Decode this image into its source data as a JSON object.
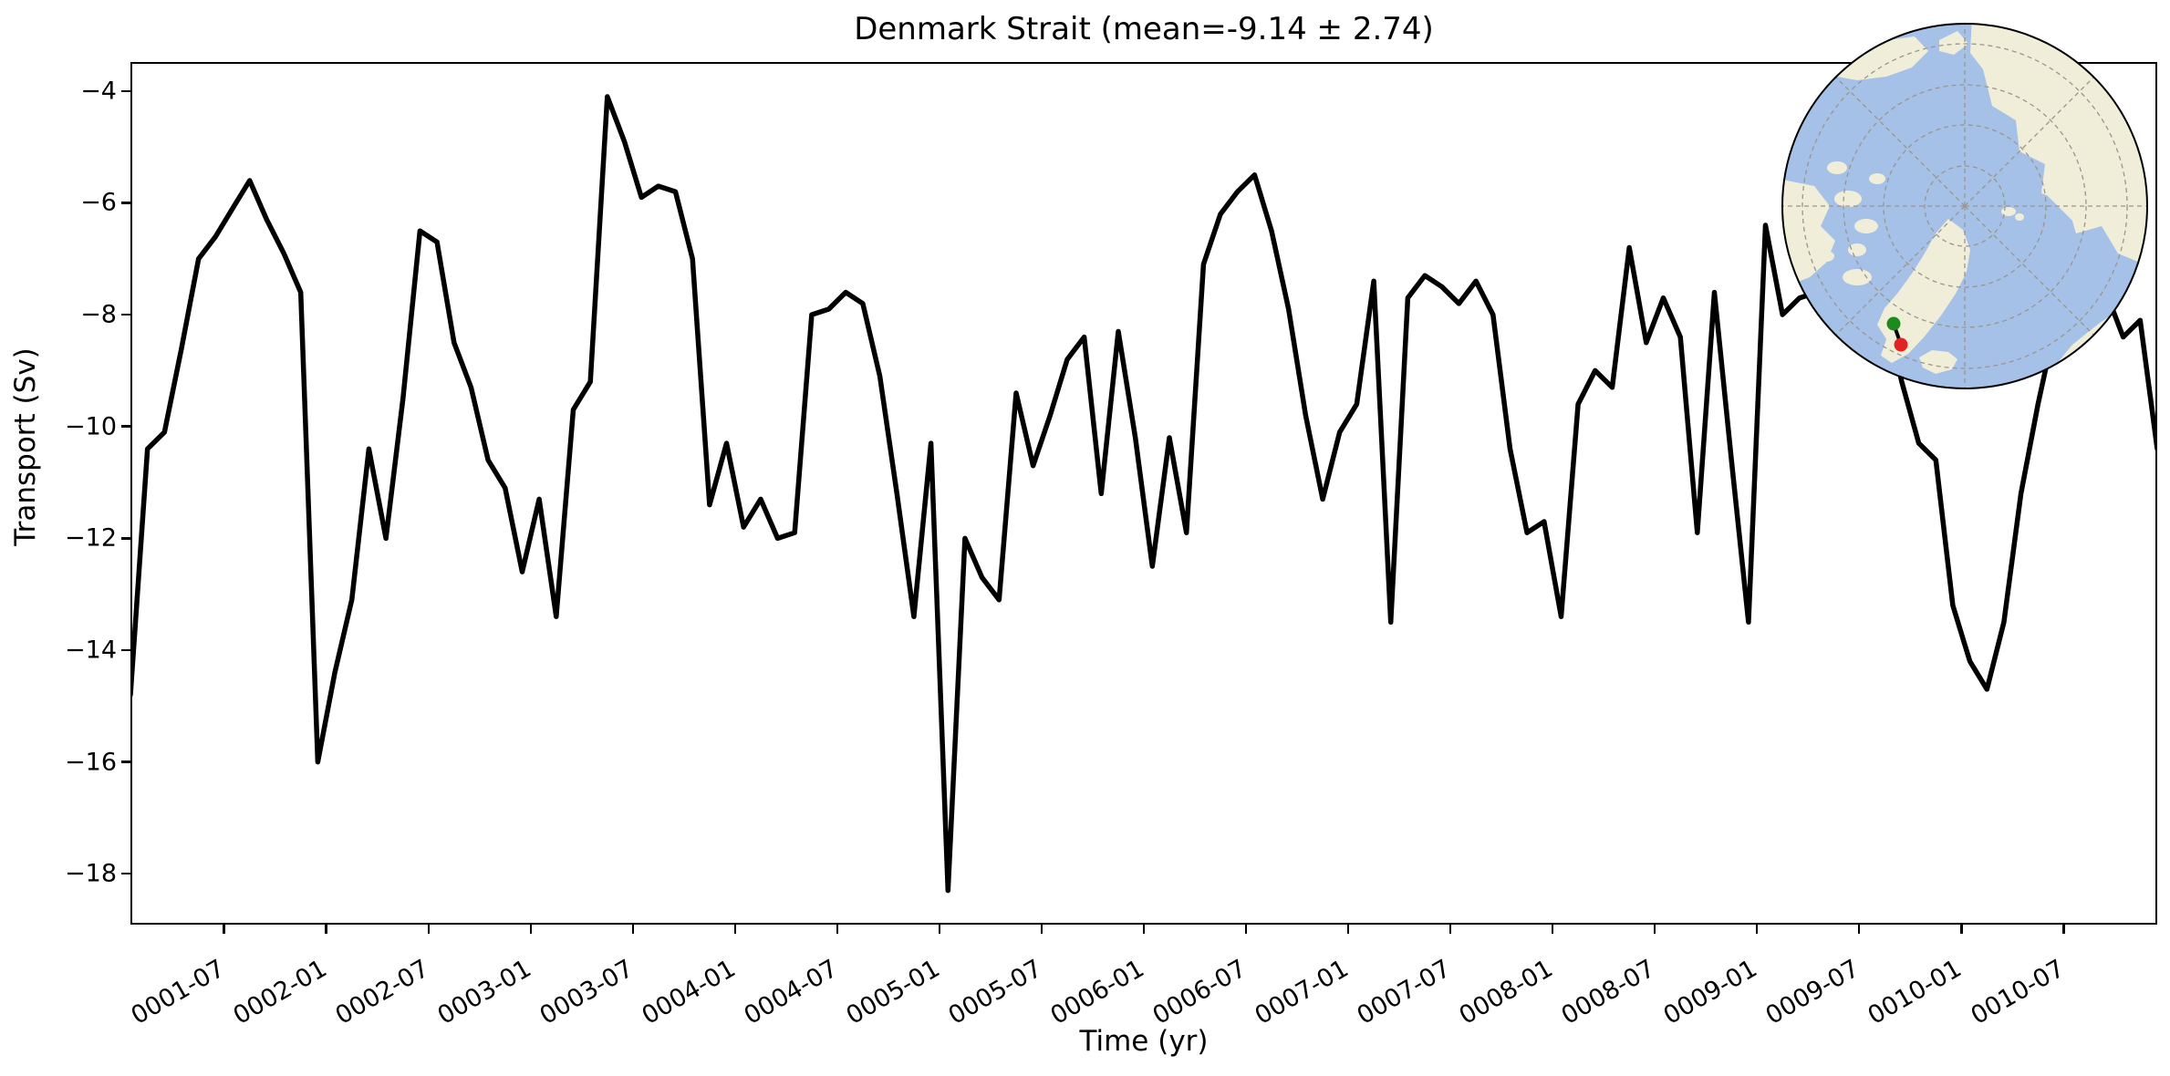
{
  "chart_data": {
    "type": "line",
    "title": "Denmark Strait (mean=-9.14 ± 2.74)",
    "xlabel": "Time (yr)",
    "ylabel": "Transport (Sv)",
    "mean": -9.14,
    "std": 2.74,
    "x_start": "0001-01",
    "x_end": "0010-12",
    "n_points": 120,
    "values": [
      -14.8,
      -10.4,
      -10.1,
      -8.6,
      -7.0,
      -6.6,
      -6.1,
      -5.6,
      -6.3,
      -6.9,
      -7.6,
      -16.0,
      -14.4,
      -13.1,
      -10.4,
      -12.0,
      -9.5,
      -6.5,
      -6.7,
      -8.5,
      -9.3,
      -10.6,
      -11.1,
      -12.6,
      -11.3,
      -13.4,
      -9.7,
      -9.2,
      -4.1,
      -4.9,
      -5.9,
      -5.7,
      -5.8,
      -7.0,
      -11.4,
      -10.3,
      -11.8,
      -11.3,
      -12.0,
      -11.9,
      -8.0,
      -7.9,
      -7.6,
      -7.8,
      -9.1,
      -11.2,
      -13.4,
      -10.3,
      -18.3,
      -12.0,
      -12.7,
      -13.1,
      -9.4,
      -10.7,
      -9.8,
      -8.8,
      -8.4,
      -11.2,
      -8.3,
      -10.2,
      -12.5,
      -10.2,
      -11.9,
      -7.1,
      -6.2,
      -5.8,
      -5.5,
      -6.5,
      -7.9,
      -9.8,
      -11.3,
      -10.1,
      -9.6,
      -7.4,
      -13.5,
      -7.7,
      -7.3,
      -7.5,
      -7.8,
      -7.4,
      -8.0,
      -10.4,
      -11.9,
      -11.7,
      -13.4,
      -9.6,
      -9.0,
      -9.3,
      -6.8,
      -8.5,
      -7.7,
      -8.4,
      -11.9,
      -7.6,
      -10.6,
      -13.5,
      -6.4,
      -8.0,
      -7.7,
      -7.6,
      -7.6,
      -7.3,
      -7.0,
      -7.9,
      -9.2,
      -10.3,
      -10.6,
      -13.2,
      -14.2,
      -14.7,
      -13.5,
      -11.2,
      -9.6,
      -8.2,
      -7.1,
      -6.9,
      -7.6,
      -8.4,
      -8.1,
      -10.4
    ],
    "x_tick_labels": [
      "0001-07",
      "0002-01",
      "0002-07",
      "0003-01",
      "0003-07",
      "0004-01",
      "0004-07",
      "0005-01",
      "0005-07",
      "0006-01",
      "0006-07",
      "0007-01",
      "0007-07",
      "0008-01",
      "0008-07",
      "0009-01",
      "0009-07",
      "0010-01",
      "0010-07"
    ],
    "x_first_tick_month_index": 5.5,
    "x_tick_interval_months": 6,
    "y_ticks": [
      -4,
      -6,
      -8,
      -10,
      -12,
      -14,
      -16,
      -18
    ],
    "y_tick_labels": [
      "−4",
      "−6",
      "−8",
      "−10",
      "−12",
      "−14",
      "−16",
      "−18"
    ],
    "ylim": [
      -18.91,
      -3.48
    ],
    "grid": false,
    "legend": null,
    "line": {
      "color": "#000000",
      "width": 5.5
    }
  },
  "inset_map": {
    "projection": "north-polar",
    "ocean_color": "#a6c1e8",
    "land_color": "#f0eed9",
    "graticule_color": "#9a958c",
    "boundary_color": "#000000",
    "start_dot_color": "#1d8a1d",
    "end_dot_color": "#e32222",
    "section_line_color": "#000000"
  }
}
